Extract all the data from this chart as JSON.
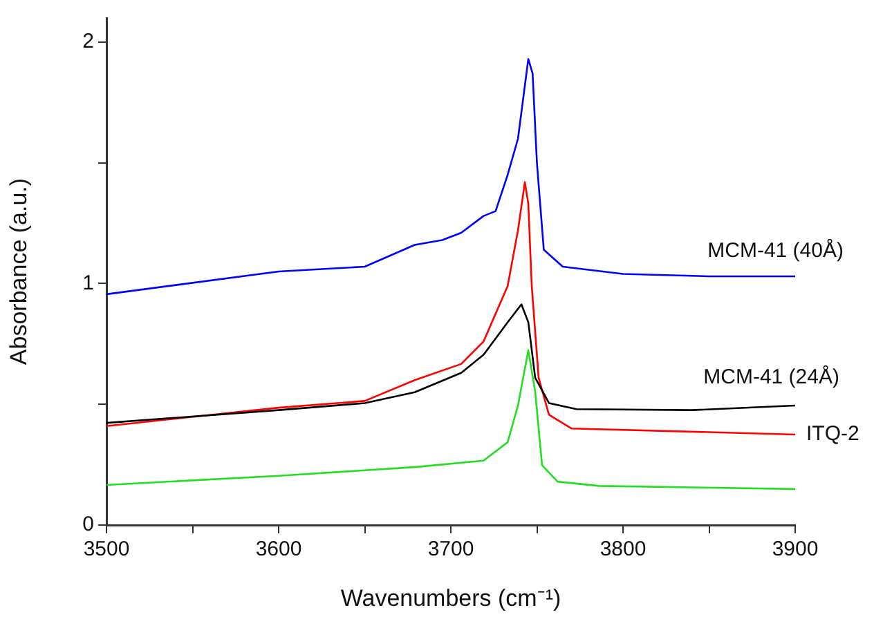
{
  "chart_data": {
    "type": "line",
    "xlabel": "Wavenumbers (cm⁻¹)",
    "ylabel": "Absorbance (a.u.)",
    "xlim": [
      3500,
      3900
    ],
    "xticks": [
      3500,
      {
        "value": 3550,
        "label": null
      },
      3600,
      {
        "value": 3650,
        "label": null
      },
      3700,
      {
        "value": 3750,
        "label": null
      },
      3800,
      {
        "value": 3850,
        "label": null
      },
      3900
    ],
    "ylim": [
      0,
      2.1
    ],
    "yticks": [
      0,
      {
        "value": 0.5,
        "label": null
      },
      1,
      {
        "value": 1.5,
        "label": null
      },
      2
    ],
    "grid": false,
    "legend": false,
    "marker": "none",
    "line_style": "solid",
    "series": [
      {
        "name": "MCM-41 (40Å)",
        "color": "#0000ff",
        "x": [
          3500,
          3600,
          3650,
          3679,
          3695,
          3706,
          3719,
          3726,
          3733,
          3739,
          3745,
          3747.5,
          3750,
          3754,
          3765,
          3800,
          3850,
          3900
        ],
        "values": [
          0.956,
          1.05,
          1.07,
          1.16,
          1.18,
          1.21,
          1.28,
          1.3,
          1.45,
          1.6,
          1.93,
          1.87,
          1.5,
          1.14,
          1.07,
          1.04,
          1.03,
          1.03
        ]
      },
      {
        "name": "MCM-41 (24Å)",
        "color": "#000000",
        "x": [
          3500,
          3600,
          3650,
          3679,
          3706,
          3719,
          3733,
          3741,
          3745,
          3749,
          3757,
          3773,
          3840,
          3900
        ],
        "values": [
          0.423,
          0.476,
          0.505,
          0.55,
          0.63,
          0.705,
          0.84,
          0.914,
          0.84,
          0.61,
          0.505,
          0.48,
          0.476,
          0.495
        ]
      },
      {
        "name": "ITQ-2",
        "color": "#ff0000",
        "x": [
          3500,
          3600,
          3650,
          3679,
          3706,
          3719,
          3733,
          3739,
          3743,
          3745,
          3747,
          3751,
          3757,
          3770,
          3900
        ],
        "values": [
          0.41,
          0.486,
          0.514,
          0.6,
          0.667,
          0.76,
          0.99,
          1.22,
          1.42,
          1.33,
          0.99,
          0.61,
          0.457,
          0.4,
          0.375
        ]
      },
      {
        "color": "#22dd22",
        "x": [
          3500,
          3600,
          3679,
          3719,
          3733,
          3739,
          3745,
          3749,
          3753,
          3762,
          3786,
          3900
        ],
        "values": [
          0.166,
          0.204,
          0.24,
          0.267,
          0.343,
          0.495,
          0.724,
          0.552,
          0.248,
          0.18,
          0.162,
          0.149
        ]
      }
    ]
  }
}
